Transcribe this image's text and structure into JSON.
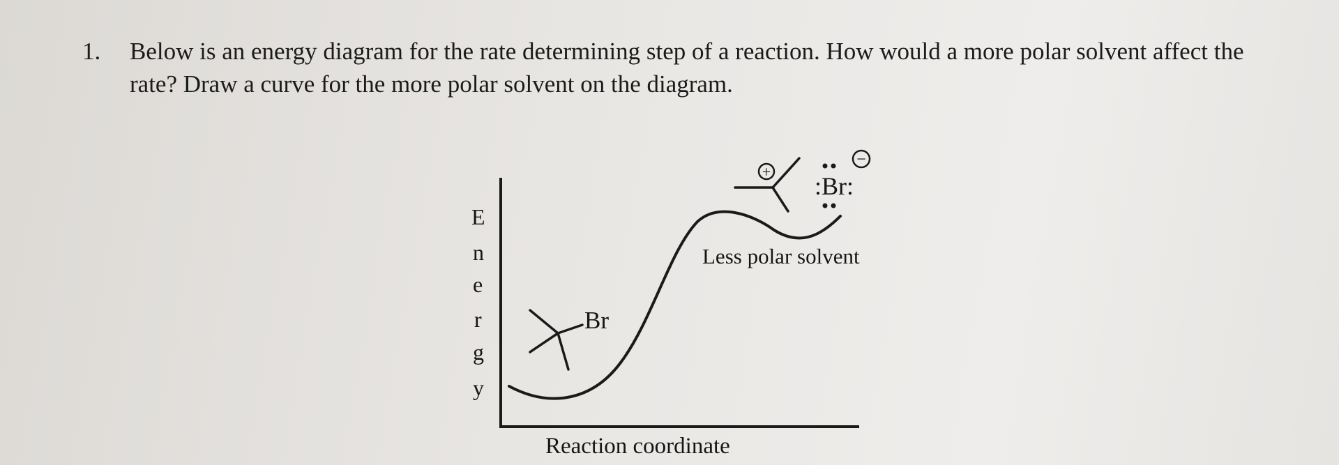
{
  "question": {
    "number": "1.",
    "text": "Below is an energy diagram for the rate determining step of a reaction. How would a more polar solvent affect the rate? Draw a curve for the more polar solvent on the diagram."
  },
  "diagram": {
    "y_axis_letters": [
      "E",
      "n",
      "e",
      "r",
      "g",
      "y"
    ],
    "x_axis_label": "Reaction coordinate",
    "reactant_substituent_label": "Br",
    "curve_label": "Less polar solvent",
    "carbocation_charge": "+",
    "bromide_label": ":Br:",
    "bromide_charge": "−"
  }
}
